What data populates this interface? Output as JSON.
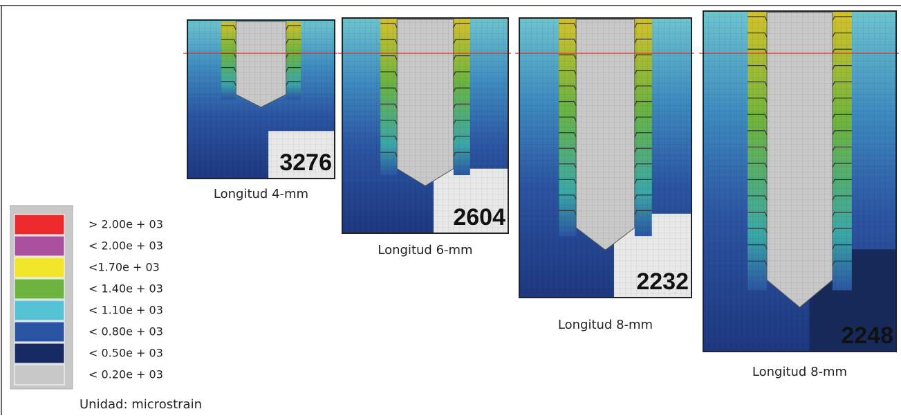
{
  "legend": {
    "items": [
      {
        "label": "> 2.00e + 03",
        "color": "#ec2a2e"
      },
      {
        "label": "< 2.00e + 03",
        "color": "#a94f9e"
      },
      {
        "label": "<1.70e + 03",
        "color": "#f2e62a"
      },
      {
        "label": "< 1.40e + 03",
        "color": "#6cb43f"
      },
      {
        "label": "< 1.10e + 03",
        "color": "#55c2d6"
      },
      {
        "label": "< 0.80e + 03",
        "color": "#2b55a3"
      },
      {
        "label": "<  0.50e + 03",
        "color": "#182a63"
      },
      {
        "label": "< 0.20e + 03",
        "color": "#c8c8c8"
      }
    ],
    "unit": "Unidad: microstrain"
  },
  "panels": [
    {
      "value": 3276,
      "caption": "Longitud 4-mm"
    },
    {
      "value": 2604,
      "caption": "Longitud 6-mm"
    },
    {
      "value": 2232,
      "caption": "Longitud 8-mm"
    },
    {
      "value": 2248,
      "caption": "Longitud 8-mm"
    }
  ]
}
